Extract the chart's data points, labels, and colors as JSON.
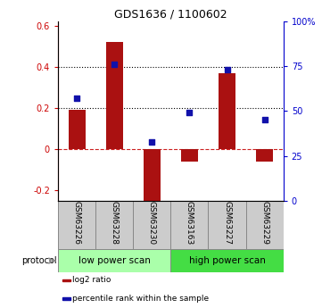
{
  "title": "GDS1636 / 1100602",
  "samples": [
    "GSM63226",
    "GSM63228",
    "GSM63230",
    "GSM63163",
    "GSM63227",
    "GSM63229"
  ],
  "log2_ratio": [
    0.19,
    0.52,
    -0.25,
    -0.06,
    0.37,
    -0.06
  ],
  "percentile_rank_pct": [
    57,
    76,
    33,
    49,
    73,
    45
  ],
  "bar_color": "#aa1111",
  "dot_color": "#1111aa",
  "ylim_left": [
    -0.25,
    0.62
  ],
  "ylim_right": [
    0,
    100
  ],
  "yticks_left": [
    -0.2,
    0.0,
    0.2,
    0.4,
    0.6
  ],
  "yticks_right": [
    0,
    25,
    50,
    75,
    100
  ],
  "ytick_labels_left": [
    "-0.2",
    "0",
    "0.2",
    "0.4",
    "0.6"
  ],
  "ytick_labels_right": [
    "0",
    "25",
    "50",
    "75",
    "100%"
  ],
  "hlines": [
    0.2,
    0.4
  ],
  "zero_line_color": "#cc2222",
  "hline_color": "#000000",
  "group_colors": [
    "#aaffaa",
    "#44dd44"
  ],
  "group_labels": [
    "low power scan",
    "high power scan"
  ],
  "group_sample_counts": [
    3,
    3
  ],
  "protocol_label": "protocol",
  "legend_items": [
    {
      "label": "log2 ratio",
      "color": "#aa1111"
    },
    {
      "label": "percentile rank within the sample",
      "color": "#1111aa"
    }
  ],
  "bg_color": "#ffffff"
}
